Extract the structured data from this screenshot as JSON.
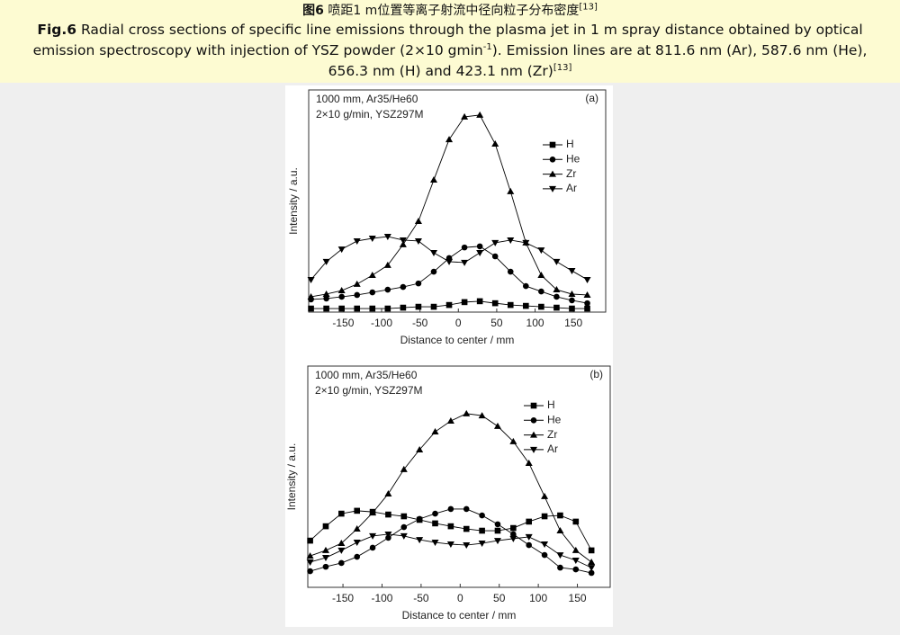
{
  "caption_cn": {
    "label": "图6",
    "text": "喷距1 m位置等离子射流中径向粒子分布密度",
    "ref": "[13]"
  },
  "caption_en": {
    "label": "Fig.6",
    "text_1": "Radial cross sections of specific line emissions through the plasma jet in 1 m spray distance obtained by optical emission spectroscopy with injection of YSZ powder (2×10 gmin",
    "sup": "-1",
    "text_2": "). Emission lines are at 811.6 nm (Ar), 587.6 nm (He), 656.3 nm (H) and 423.1 nm (Zr)",
    "ref": "[13]"
  },
  "chart_data": [
    {
      "type": "line",
      "panel": "(a)",
      "annotations": [
        "1000 mm, Ar35/He60",
        "2×10 g/min, YSZ297M"
      ],
      "x_label": "Distance to center / mm",
      "y_label": "Intensity / a.u.",
      "xlim": [
        -195,
        192
      ],
      "xticks": [
        -150,
        -100,
        -50,
        0,
        50,
        100,
        150
      ],
      "ylim": [
        0,
        100
      ],
      "x": [
        -192,
        -172,
        -152,
        -132,
        -112,
        -92,
        -72,
        -52,
        -32,
        -12,
        8,
        28,
        48,
        68,
        88,
        108,
        128,
        148,
        168
      ],
      "series": [
        {
          "name": "H",
          "color": "#000000",
          "marker": "square",
          "values": [
            1.6,
            1.6,
            1.6,
            1.6,
            1.6,
            1.6,
            2,
            2.4,
            2.4,
            3.2,
            4.5,
            4.9,
            4,
            3.2,
            2.8,
            2.4,
            2,
            1.6,
            1.6
          ]
        },
        {
          "name": "He",
          "color": "#000000",
          "marker": "circle",
          "values": [
            5.7,
            6.1,
            6.9,
            7.7,
            8.9,
            10.1,
            11.3,
            12.9,
            18.2,
            24.3,
            29.1,
            29.6,
            25.1,
            18.2,
            11.7,
            9.3,
            6.9,
            5.3,
            4.0
          ]
        },
        {
          "name": "Zr",
          "color": "#000000",
          "marker": "triangle-up",
          "values": [
            6.9,
            8.1,
            9.7,
            12.6,
            16.6,
            21.1,
            30.4,
            40.9,
            59.5,
            77.7,
            87.9,
            88.7,
            75.7,
            54.3,
            31.2,
            16.6,
            10.1,
            8.1,
            7.7
          ]
        },
        {
          "name": "Ar",
          "color": "#000000",
          "marker": "triangle-down",
          "values": [
            14.6,
            22.7,
            28.3,
            32.0,
            33.2,
            34.0,
            32.4,
            32.0,
            26.7,
            22.7,
            22.3,
            26.7,
            31.2,
            32.4,
            31.2,
            27.9,
            22.7,
            18.6,
            14.6
          ]
        }
      ]
    },
    {
      "type": "line",
      "panel": "(b)",
      "annotations": [
        "1000 mm, Ar35/He60",
        "2×10 g/min, YSZ297M"
      ],
      "x_label": "Distance to center / mm",
      "y_label": "Intensity / a.u.",
      "xlim": [
        -195,
        192
      ],
      "xticks": [
        -150,
        -100,
        -50,
        0,
        50,
        100,
        150
      ],
      "ylim": [
        0,
        100
      ],
      "x": [
        -192,
        -172,
        -152,
        -132,
        -112,
        -92,
        -72,
        -52,
        -32,
        -12,
        8,
        28,
        48,
        68,
        88,
        108,
        128,
        148,
        168
      ],
      "series": [
        {
          "name": "H",
          "color": "#000000",
          "marker": "square",
          "values": [
            21.1,
            27.6,
            33.3,
            34.6,
            34.1,
            32.9,
            32.1,
            30.5,
            28.9,
            27.6,
            26.4,
            25.6,
            25.6,
            26.8,
            29.7,
            32.1,
            32.5,
            29.7,
            16.7
          ]
        },
        {
          "name": "He",
          "color": "#000000",
          "marker": "circle",
          "values": [
            7.3,
            9.3,
            11.0,
            13.8,
            17.9,
            22.4,
            27.2,
            30.9,
            33.3,
            35.4,
            35.4,
            32.5,
            28.5,
            24.0,
            19.1,
            14.6,
            8.9,
            8.1,
            6.5
          ]
        },
        {
          "name": "Zr",
          "color": "#000000",
          "marker": "triangle-up",
          "values": [
            14.2,
            16.7,
            19.9,
            26.4,
            33.7,
            42.3,
            53.3,
            62.2,
            70.3,
            75.2,
            78.5,
            77.6,
            72.8,
            65.9,
            56.1,
            41.1,
            25.6,
            16.7,
            11.4
          ]
        },
        {
          "name": "Ar",
          "color": "#000000",
          "marker": "triangle-down",
          "values": [
            11.4,
            13.4,
            16.7,
            20.3,
            23.2,
            24.0,
            23.2,
            21.5,
            20.3,
            19.5,
            19.1,
            19.9,
            21.1,
            22.0,
            22.8,
            19.5,
            14.6,
            12.2,
            8.9
          ]
        }
      ]
    }
  ]
}
